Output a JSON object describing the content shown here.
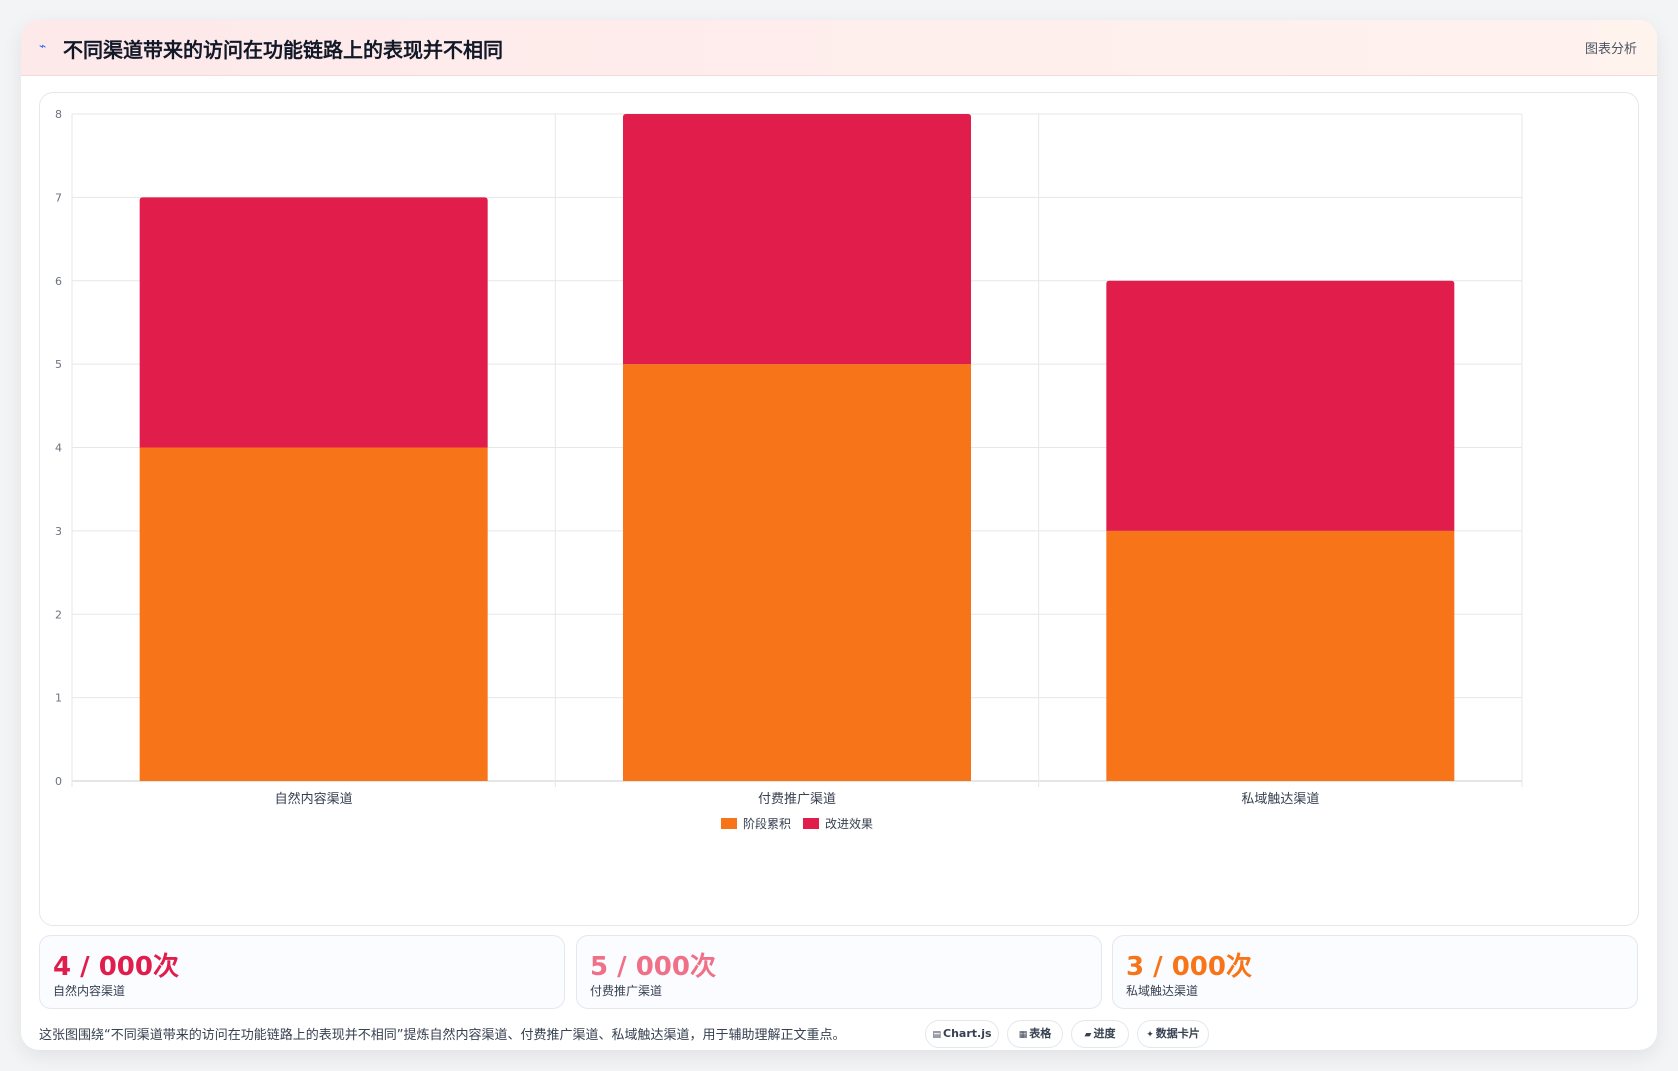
{
  "header": {
    "icon": "trend-line-icon",
    "title": "不同渠道带来的访问在功能链路上的表现并不相同",
    "tag": "图表分析"
  },
  "chart_data": {
    "type": "bar",
    "stacked": true,
    "categories": [
      "自然内容渠道",
      "付费推广渠道",
      "私域触达渠道"
    ],
    "series": [
      {
        "name": "阶段累积",
        "values": [
          4,
          5,
          3
        ],
        "color": "#f77418"
      },
      {
        "name": "改进效果",
        "values": [
          3,
          3,
          3
        ],
        "color": "#e01d4b"
      }
    ],
    "title": "",
    "xlabel": "",
    "ylabel": "",
    "ylim": [
      0,
      8
    ],
    "yticks": [
      0,
      1,
      2,
      3,
      4,
      5,
      6,
      7,
      8
    ],
    "grid": true,
    "legend": "bottom"
  },
  "stats": [
    {
      "value": "4 / 000次",
      "label": "自然内容渠道",
      "color": "#e01d4b"
    },
    {
      "value": "5 / 000次",
      "label": "付费推广渠道",
      "color": "#f07088"
    },
    {
      "value": "3 / 000次",
      "label": "私域触达渠道",
      "color": "#f77418"
    }
  ],
  "footer": {
    "text": "这张图围绕“不同渠道带来的访问在功能链路上的表现并不相同”提炼自然内容渠道、付费推广渠道、私域触达渠道，用于辅助理解正文重点。",
    "chips": [
      {
        "icon": "chart-icon",
        "glyph": "▤",
        "label": "Chart.js"
      },
      {
        "icon": "table-icon",
        "glyph": "▦",
        "label": "表格"
      },
      {
        "icon": "progress-icon",
        "glyph": "▰",
        "label": "进度"
      },
      {
        "icon": "sparkle-icon",
        "glyph": "✦",
        "label": "数据卡片"
      }
    ]
  }
}
